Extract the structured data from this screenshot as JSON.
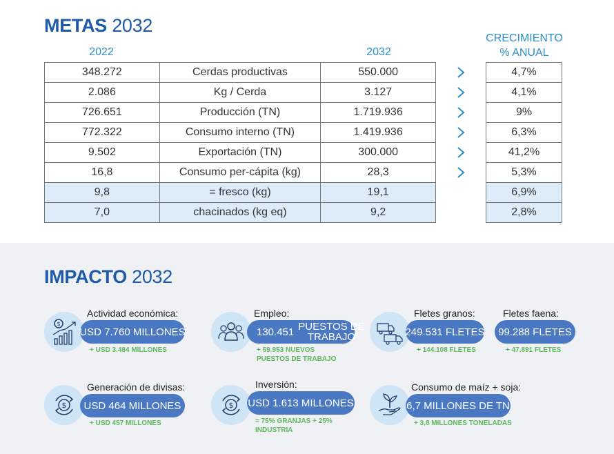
{
  "metas": {
    "title_bold": "METAS",
    "title_year": "2032",
    "col_2022": "2022",
    "col_2032": "2032",
    "growth_head_line1": "CRECIMIENTO",
    "growth_head_line2": "% ANUAL",
    "rows": [
      {
        "v2022": "348.272",
        "label": "Cerdas productivas",
        "v2032": "550.000",
        "growth": "4,7%"
      },
      {
        "v2022": "2.086",
        "label": "Kg / Cerda",
        "v2032": "3.127",
        "growth": "4,1%"
      },
      {
        "v2022": "726.651",
        "label": "Producción (TN)",
        "v2032": "1.719.936",
        "growth": "9%"
      },
      {
        "v2022": "772.322",
        "label": "Consumo interno (TN)",
        "v2032": "1.419.936",
        "growth": "6,3%"
      },
      {
        "v2022": "9.502",
        "label": "Exportación (TN)",
        "v2032": "300.000",
        "growth": "41,2%"
      },
      {
        "v2022": "16,8",
        "label": "Consumo per-cápita (kg)",
        "v2032": "28,3",
        "growth": "5,3%"
      },
      {
        "v2022": "9,8",
        "label": "= fresco (kg)",
        "v2032": "19,1",
        "growth": "6,9%"
      },
      {
        "v2022": "7,0",
        "label": "chacinados (kg eq)",
        "v2032": "9,2",
        "growth": "2,8%"
      }
    ]
  },
  "impacto": {
    "title_bold": "IMPACTO",
    "title_year": "2032",
    "actividad": {
      "label": "Actividad económica:",
      "value": "USD 7.760 MILLONES",
      "note": "+ USD 3.484 MILLONES"
    },
    "empleo": {
      "label": "Empleo:",
      "value_num": "130.451",
      "value_line1": "PUESTOS DE",
      "value_line2": "TRABAJO",
      "note_line1": "+ 59.953 NUEVOS",
      "note_line2": "PUESTOS DE TRABAJO"
    },
    "fletes_granos": {
      "label": "Fletes granos:",
      "value": "249.531 FLETES",
      "note": "+ 144.108 FLETES"
    },
    "fletes_faena": {
      "label": "Fletes faena:",
      "value": "99.288 FLETES",
      "note": "+ 47.891 FLETES"
    },
    "divisas": {
      "label": "Generación de divisas:",
      "value": "USD 464 MILLONES",
      "note": "+ USD 457 MILLONES"
    },
    "inversion": {
      "label": "Inversión:",
      "value": "USD 1.613 MILLONES",
      "note_line1": "= 75% GRANJAS + 25%",
      "note_line2": "INDUSTRIA"
    },
    "consumo": {
      "label": "Consumo de maíz + soja:",
      "value": "6,7 MILLONES DE TN",
      "note": "+ 3,8 MILLONES TONELADAS"
    }
  },
  "colors": {
    "accent_dark": "#1f5aa8",
    "accent_light": "#2a8fc9",
    "pill": "#4a78c2",
    "note_green": "#5cb85c",
    "row_highlight": "#dcecf8"
  }
}
